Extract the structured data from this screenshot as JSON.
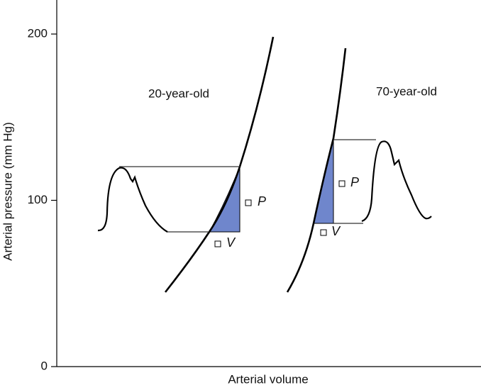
{
  "y_axis": {
    "label": "Arterial pressure (mm Hg)",
    "ticks": [
      0,
      100,
      200
    ]
  },
  "x_axis": {
    "label": "Arterial volume"
  },
  "panels": [
    {
      "label": "20-year-old",
      "delta_p": "P",
      "delta_v": "V"
    },
    {
      "label": "70-year-old",
      "delta_p": "P",
      "delta_v": "V"
    }
  ]
}
